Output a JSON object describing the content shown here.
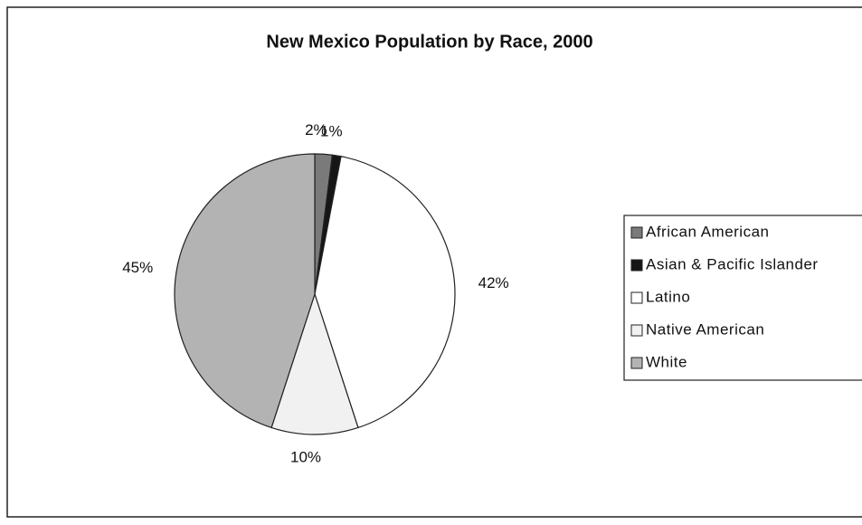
{
  "chart_data": {
    "type": "pie",
    "title": "New Mexico Population by Race, 2000",
    "categories": [
      "African American",
      "Asian & Pacific Islander",
      "Latino",
      "Native American",
      "White"
    ],
    "values": [
      2,
      1,
      42,
      10,
      45
    ],
    "value_labels": [
      "2%",
      "1%",
      "42%",
      "10%",
      "45%"
    ],
    "colors": [
      "#7a7a7a",
      "#161616",
      "#ffffff",
      "#f1f1f1",
      "#b3b3b3"
    ],
    "legend": "right"
  }
}
